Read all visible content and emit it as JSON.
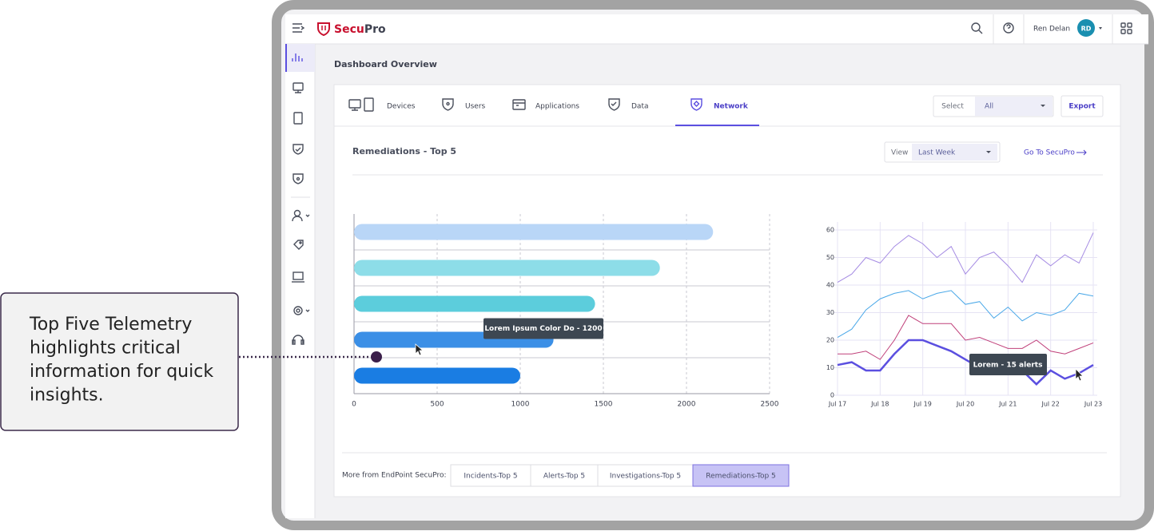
{
  "callout": {
    "text": [
      "Top Five Telemetry",
      "highlights critical",
      "information for quick",
      "insights."
    ]
  },
  "app": {
    "brand_prefix": "Secu",
    "brand_suffix": "Pro",
    "user": "Ren Delan",
    "initials": "RD"
  },
  "page_title": "Dashboard Overview",
  "tabs": [
    {
      "label": "Devices",
      "active": false
    },
    {
      "label": "Users",
      "active": false
    },
    {
      "label": "Applications",
      "active": false
    },
    {
      "label": "Data",
      "active": false
    },
    {
      "label": "Network",
      "active": true
    }
  ],
  "filter": {
    "label": "Select",
    "value": "All",
    "export": "Export"
  },
  "panel": {
    "title": "Remediations - Top 5",
    "view_label": "View",
    "view_value": "Last Week",
    "link": "Go To SecuPro"
  },
  "chart_data": [
    {
      "type": "hbar",
      "values": [
        2160,
        1840,
        1450,
        1200,
        1000
      ],
      "colors": [
        "#b9d6f7",
        "#8ddde8",
        "#5ccddc",
        "#3b8fe6",
        "#1a7de3"
      ],
      "xlim": [
        0,
        2500
      ],
      "xticks": [
        0,
        500,
        1000,
        1500,
        2000,
        2500
      ],
      "grid": true,
      "tooltip": "Lorem Ipsum Color Do - 1200"
    },
    {
      "type": "line",
      "x": [
        0,
        1,
        2,
        3,
        4,
        5,
        6,
        7,
        8,
        9,
        10,
        11,
        12,
        13,
        14,
        15,
        16,
        17,
        18
      ],
      "xlim": [
        0,
        18
      ],
      "xticks": [
        {
          "value": 0,
          "label": "Jul 17"
        },
        {
          "value": 3,
          "label": "Jul 18"
        },
        {
          "value": 6,
          "label": "Jul 19"
        },
        {
          "value": 9,
          "label": "Jul 20"
        },
        {
          "value": 12,
          "label": "Jul 21"
        },
        {
          "value": 15,
          "label": "Jul 22"
        },
        {
          "value": 18,
          "label": "Jul 23"
        }
      ],
      "ylim": [
        0,
        60
      ],
      "yticks": [
        0,
        10,
        20,
        30,
        40,
        50,
        60
      ],
      "grid": true,
      "series": [
        {
          "color": "#a58be3",
          "width": 1,
          "values": [
            41,
            44,
            50,
            48,
            54,
            58,
            55,
            50,
            54,
            44,
            50,
            52,
            47,
            41,
            51,
            47,
            51,
            48,
            59
          ]
        },
        {
          "color": "#4aa8e8",
          "width": 1,
          "values": [
            21,
            24,
            31,
            35,
            37,
            38,
            35,
            37,
            38,
            33,
            34,
            28,
            32,
            27,
            30,
            29,
            31,
            37,
            36
          ]
        },
        {
          "color": "#c0407a",
          "width": 1,
          "values": [
            15,
            15,
            16,
            13,
            20,
            29,
            26,
            26,
            26,
            20,
            21,
            19,
            17,
            17,
            20,
            16,
            15,
            17,
            19
          ]
        },
        {
          "color": "#5b4fe0",
          "width": 2.5,
          "values": [
            11,
            12,
            9,
            9,
            15,
            20,
            20,
            18,
            16,
            13,
            10,
            11,
            13,
            9,
            4,
            9,
            6,
            8,
            11
          ]
        }
      ],
      "tooltip": "Lorem - 15 alerts"
    }
  ],
  "footer": {
    "label": "More from EndPoint SecuPro:",
    "buttons": [
      {
        "label": "Incidents-Top 5",
        "active": false
      },
      {
        "label": "Alerts-Top 5",
        "active": false
      },
      {
        "label": "Investigations-Top 5",
        "active": false
      },
      {
        "label": "Remediations-Top 5",
        "active": true
      }
    ]
  }
}
